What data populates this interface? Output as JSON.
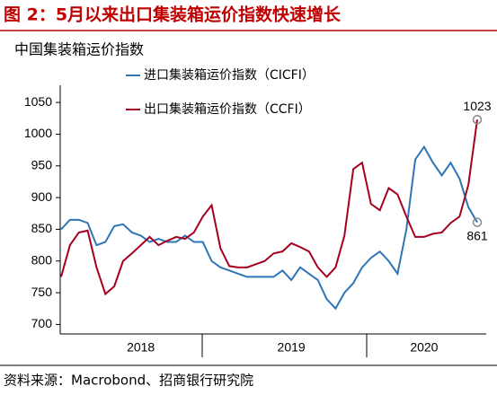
{
  "chart_data": {
    "type": "line",
    "title": "图 2：5月以来出口集装箱运价指数快速增长",
    "subtitle": "中国集装箱运价指数",
    "source": "资料来源：Macrobond、招商银行研究院",
    "categories": [
      null,
      null,
      null,
      null,
      null,
      null,
      null,
      null,
      null,
      "2018",
      null,
      null,
      null,
      null,
      null,
      null,
      null,
      null,
      null,
      null,
      null,
      null,
      null,
      null,
      null,
      null,
      "2019",
      null,
      null,
      null,
      null,
      null,
      null,
      null,
      null,
      null,
      null,
      null,
      null,
      null,
      null,
      "2020",
      null,
      null,
      null,
      null,
      null,
      null
    ],
    "series": [
      {
        "name": "进口集装箱运价指数（CICFI）",
        "color": "#2e75b6",
        "values": [
          850,
          865,
          865,
          860,
          825,
          830,
          855,
          858,
          845,
          840,
          830,
          835,
          830,
          830,
          840,
          830,
          830,
          800,
          790,
          785,
          780,
          775,
          775,
          775,
          775,
          785,
          770,
          790,
          780,
          770,
          740,
          725,
          750,
          765,
          790,
          805,
          815,
          800,
          780,
          850,
          960,
          980,
          955,
          935,
          955,
          930,
          885,
          861
        ]
      },
      {
        "name": "出口集装箱运价指数（CCFI）",
        "color": "#a50021",
        "values": [
          775,
          825,
          845,
          848,
          790,
          748,
          760,
          800,
          812,
          825,
          838,
          825,
          832,
          838,
          835,
          845,
          870,
          888,
          820,
          792,
          790,
          790,
          795,
          800,
          812,
          815,
          828,
          822,
          815,
          790,
          775,
          790,
          840,
          945,
          955,
          890,
          880,
          915,
          905,
          870,
          838,
          838,
          843,
          845,
          860,
          870,
          920,
          1023
        ]
      }
    ],
    "ylim": [
      685,
      1070
    ],
    "yticks": [
      700,
      750,
      800,
      850,
      900,
      950,
      1000,
      1050
    ],
    "end_labels": true
  }
}
